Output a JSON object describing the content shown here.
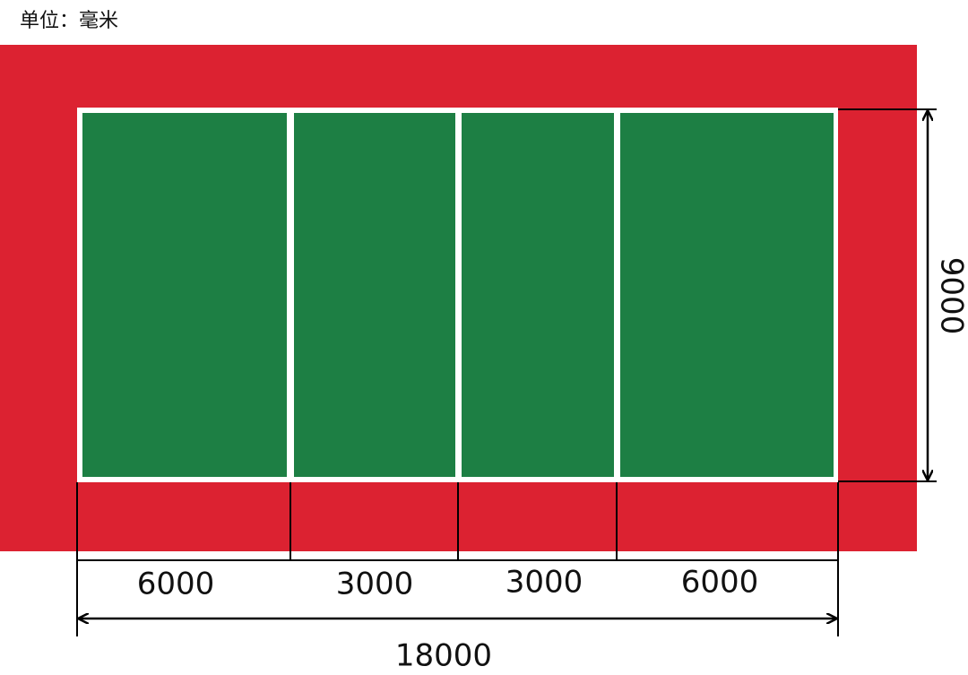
{
  "unit_label": "单位：毫米",
  "dimensions": {
    "sections": [
      6000,
      3000,
      3000,
      6000
    ],
    "total_length": 18000,
    "width": 9000
  }
}
